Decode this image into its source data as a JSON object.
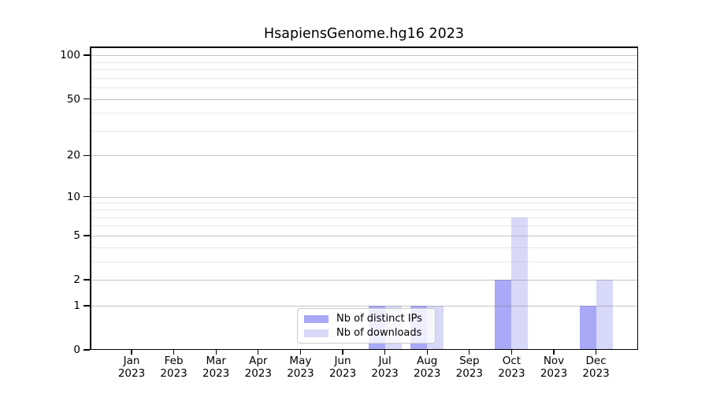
{
  "title": "HsapiensGenome.hg16 2023",
  "chart_data": {
    "type": "bar",
    "title": "HsapiensGenome.hg16 2023",
    "categories": [
      "Jan 2023",
      "Feb 2023",
      "Mar 2023",
      "Apr 2023",
      "May 2023",
      "Jun 2023",
      "Jul 2023",
      "Aug 2023",
      "Sep 2023",
      "Oct 2023",
      "Nov 2023",
      "Dec 2023"
    ],
    "series": [
      {
        "name": "Nb of distinct IPs",
        "color": "#a9a9f7",
        "values": [
          0,
          0,
          0,
          0,
          0,
          0,
          1,
          1,
          0,
          2,
          0,
          1
        ]
      },
      {
        "name": "Nb of downloads",
        "color": "#d8d8f8",
        "values": [
          0,
          0,
          0,
          0,
          0,
          0,
          1,
          1,
          0,
          7,
          0,
          2
        ]
      }
    ],
    "xlabel": "",
    "ylabel": "",
    "yscale": "log1p",
    "ylim": [
      0,
      115
    ],
    "yticks": [
      0,
      1,
      2,
      5,
      10,
      20,
      50,
      100
    ],
    "minor_yticks": [
      3,
      4,
      6,
      7,
      8,
      9,
      30,
      40,
      60,
      70,
      80,
      90
    ],
    "grid": "horizontal",
    "legend_position": "inside-bottom-center"
  }
}
